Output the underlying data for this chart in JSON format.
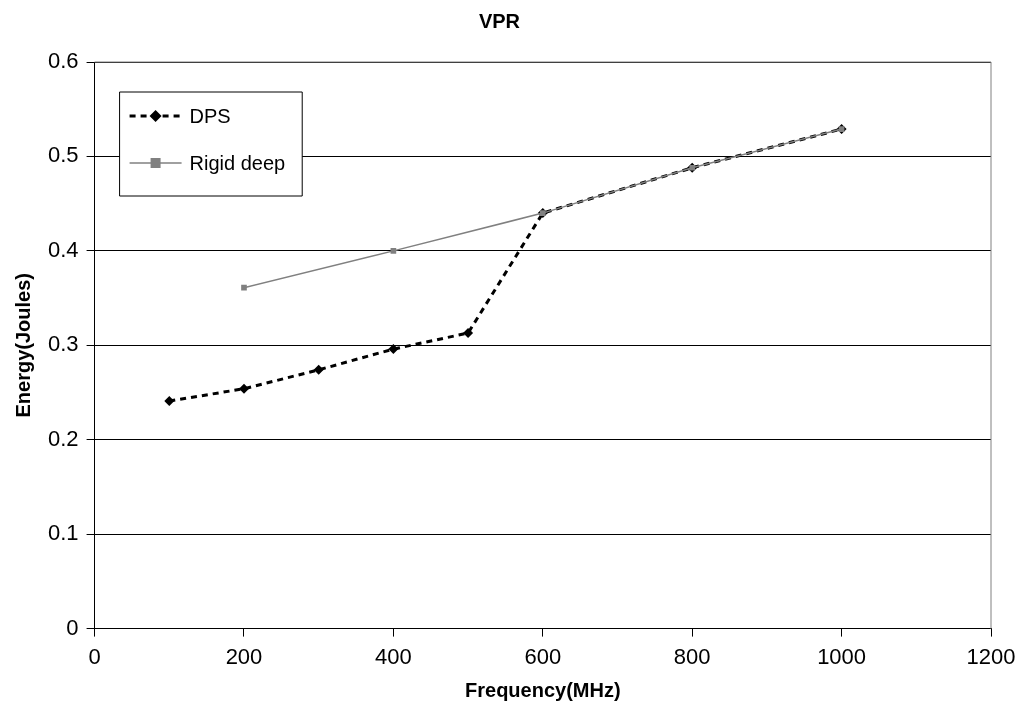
{
  "chart_data": {
    "type": "line",
    "title": "VPR",
    "xlabel": "Frequency(MHz)",
    "ylabel": "Energy(Joules)",
    "xlim": [
      0,
      1200
    ],
    "xticks": [
      0,
      200,
      400,
      600,
      800,
      1000,
      1200
    ],
    "ylim": [
      0,
      0.6
    ],
    "yticks": [
      0,
      0.1,
      0.2,
      0.3,
      0.4,
      0.5,
      0.6
    ],
    "grid": "y",
    "legend": "top left",
    "series": [
      {
        "name": "DPS",
        "color": "#000000",
        "marker": "diamond",
        "line_style": "dashed",
        "x": [
          100,
          200,
          300,
          400,
          500,
          600,
          800,
          1000
        ],
        "values": [
          0.241,
          0.254,
          0.274,
          0.296,
          0.313,
          0.44,
          0.488,
          0.529
        ]
      },
      {
        "name": "Rigid deep",
        "color": "#808080",
        "marker": "square",
        "line_style": "solid",
        "x": [
          200,
          400,
          600,
          800,
          1000
        ],
        "values": [
          0.361,
          0.4,
          0.44,
          0.488,
          0.529
        ]
      }
    ]
  }
}
